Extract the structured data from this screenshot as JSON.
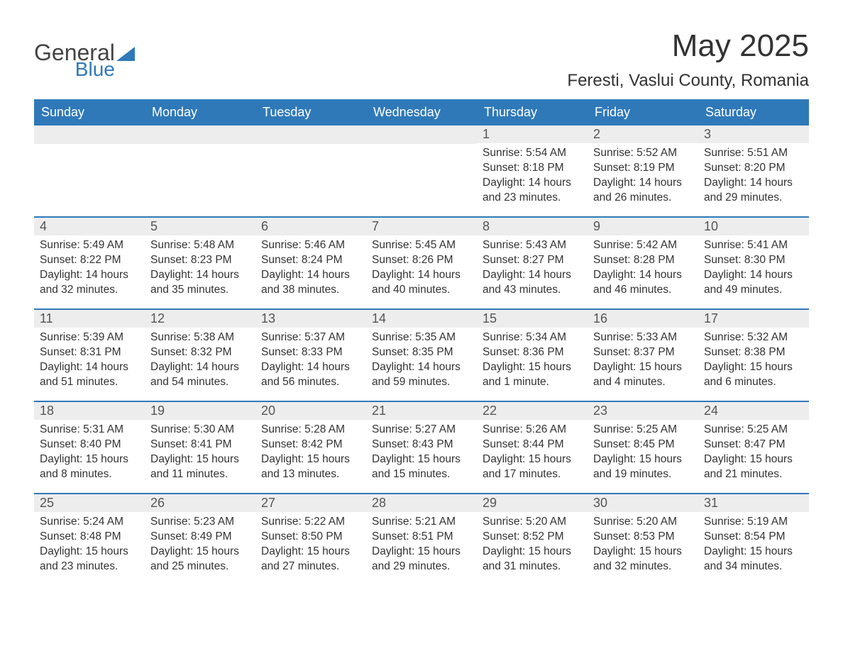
{
  "colors": {
    "brand_blue": "#2f79b9",
    "header_bg": "#2f79b9",
    "header_text": "#ffffff",
    "daynum_bg": "#ededed",
    "text": "#333333",
    "logo_gray": "#444444",
    "row_divider": "#2f79b9",
    "background": "#ffffff"
  },
  "typography": {
    "font_family": "Arial, Helvetica, sans-serif",
    "month_title_pt": 44,
    "location_pt": 24,
    "dow_pt": 18,
    "daynum_pt": 18,
    "body_pt": 15.5
  },
  "logo": {
    "line1": "General",
    "line2": "Blue"
  },
  "title": "May 2025",
  "location": "Feresti, Vaslui County, Romania",
  "days_of_week": [
    "Sunday",
    "Monday",
    "Tuesday",
    "Wednesday",
    "Thursday",
    "Friday",
    "Saturday"
  ],
  "labels": {
    "sunrise": "Sunrise:",
    "sunset": "Sunset:",
    "daylight": "Daylight:"
  },
  "weeks": [
    [
      null,
      null,
      null,
      null,
      {
        "n": "1",
        "sunrise": "5:54 AM",
        "sunset": "8:18 PM",
        "daylight": "14 hours and 23 minutes."
      },
      {
        "n": "2",
        "sunrise": "5:52 AM",
        "sunset": "8:19 PM",
        "daylight": "14 hours and 26 minutes."
      },
      {
        "n": "3",
        "sunrise": "5:51 AM",
        "sunset": "8:20 PM",
        "daylight": "14 hours and 29 minutes."
      }
    ],
    [
      {
        "n": "4",
        "sunrise": "5:49 AM",
        "sunset": "8:22 PM",
        "daylight": "14 hours and 32 minutes."
      },
      {
        "n": "5",
        "sunrise": "5:48 AM",
        "sunset": "8:23 PM",
        "daylight": "14 hours and 35 minutes."
      },
      {
        "n": "6",
        "sunrise": "5:46 AM",
        "sunset": "8:24 PM",
        "daylight": "14 hours and 38 minutes."
      },
      {
        "n": "7",
        "sunrise": "5:45 AM",
        "sunset": "8:26 PM",
        "daylight": "14 hours and 40 minutes."
      },
      {
        "n": "8",
        "sunrise": "5:43 AM",
        "sunset": "8:27 PM",
        "daylight": "14 hours and 43 minutes."
      },
      {
        "n": "9",
        "sunrise": "5:42 AM",
        "sunset": "8:28 PM",
        "daylight": "14 hours and 46 minutes."
      },
      {
        "n": "10",
        "sunrise": "5:41 AM",
        "sunset": "8:30 PM",
        "daylight": "14 hours and 49 minutes."
      }
    ],
    [
      {
        "n": "11",
        "sunrise": "5:39 AM",
        "sunset": "8:31 PM",
        "daylight": "14 hours and 51 minutes."
      },
      {
        "n": "12",
        "sunrise": "5:38 AM",
        "sunset": "8:32 PM",
        "daylight": "14 hours and 54 minutes."
      },
      {
        "n": "13",
        "sunrise": "5:37 AM",
        "sunset": "8:33 PM",
        "daylight": "14 hours and 56 minutes."
      },
      {
        "n": "14",
        "sunrise": "5:35 AM",
        "sunset": "8:35 PM",
        "daylight": "14 hours and 59 minutes."
      },
      {
        "n": "15",
        "sunrise": "5:34 AM",
        "sunset": "8:36 PM",
        "daylight": "15 hours and 1 minute."
      },
      {
        "n": "16",
        "sunrise": "5:33 AM",
        "sunset": "8:37 PM",
        "daylight": "15 hours and 4 minutes."
      },
      {
        "n": "17",
        "sunrise": "5:32 AM",
        "sunset": "8:38 PM",
        "daylight": "15 hours and 6 minutes."
      }
    ],
    [
      {
        "n": "18",
        "sunrise": "5:31 AM",
        "sunset": "8:40 PM",
        "daylight": "15 hours and 8 minutes."
      },
      {
        "n": "19",
        "sunrise": "5:30 AM",
        "sunset": "8:41 PM",
        "daylight": "15 hours and 11 minutes."
      },
      {
        "n": "20",
        "sunrise": "5:28 AM",
        "sunset": "8:42 PM",
        "daylight": "15 hours and 13 minutes."
      },
      {
        "n": "21",
        "sunrise": "5:27 AM",
        "sunset": "8:43 PM",
        "daylight": "15 hours and 15 minutes."
      },
      {
        "n": "22",
        "sunrise": "5:26 AM",
        "sunset": "8:44 PM",
        "daylight": "15 hours and 17 minutes."
      },
      {
        "n": "23",
        "sunrise": "5:25 AM",
        "sunset": "8:45 PM",
        "daylight": "15 hours and 19 minutes."
      },
      {
        "n": "24",
        "sunrise": "5:25 AM",
        "sunset": "8:47 PM",
        "daylight": "15 hours and 21 minutes."
      }
    ],
    [
      {
        "n": "25",
        "sunrise": "5:24 AM",
        "sunset": "8:48 PM",
        "daylight": "15 hours and 23 minutes."
      },
      {
        "n": "26",
        "sunrise": "5:23 AM",
        "sunset": "8:49 PM",
        "daylight": "15 hours and 25 minutes."
      },
      {
        "n": "27",
        "sunrise": "5:22 AM",
        "sunset": "8:50 PM",
        "daylight": "15 hours and 27 minutes."
      },
      {
        "n": "28",
        "sunrise": "5:21 AM",
        "sunset": "8:51 PM",
        "daylight": "15 hours and 29 minutes."
      },
      {
        "n": "29",
        "sunrise": "5:20 AM",
        "sunset": "8:52 PM",
        "daylight": "15 hours and 31 minutes."
      },
      {
        "n": "30",
        "sunrise": "5:20 AM",
        "sunset": "8:53 PM",
        "daylight": "15 hours and 32 minutes."
      },
      {
        "n": "31",
        "sunrise": "5:19 AM",
        "sunset": "8:54 PM",
        "daylight": "15 hours and 34 minutes."
      }
    ]
  ]
}
